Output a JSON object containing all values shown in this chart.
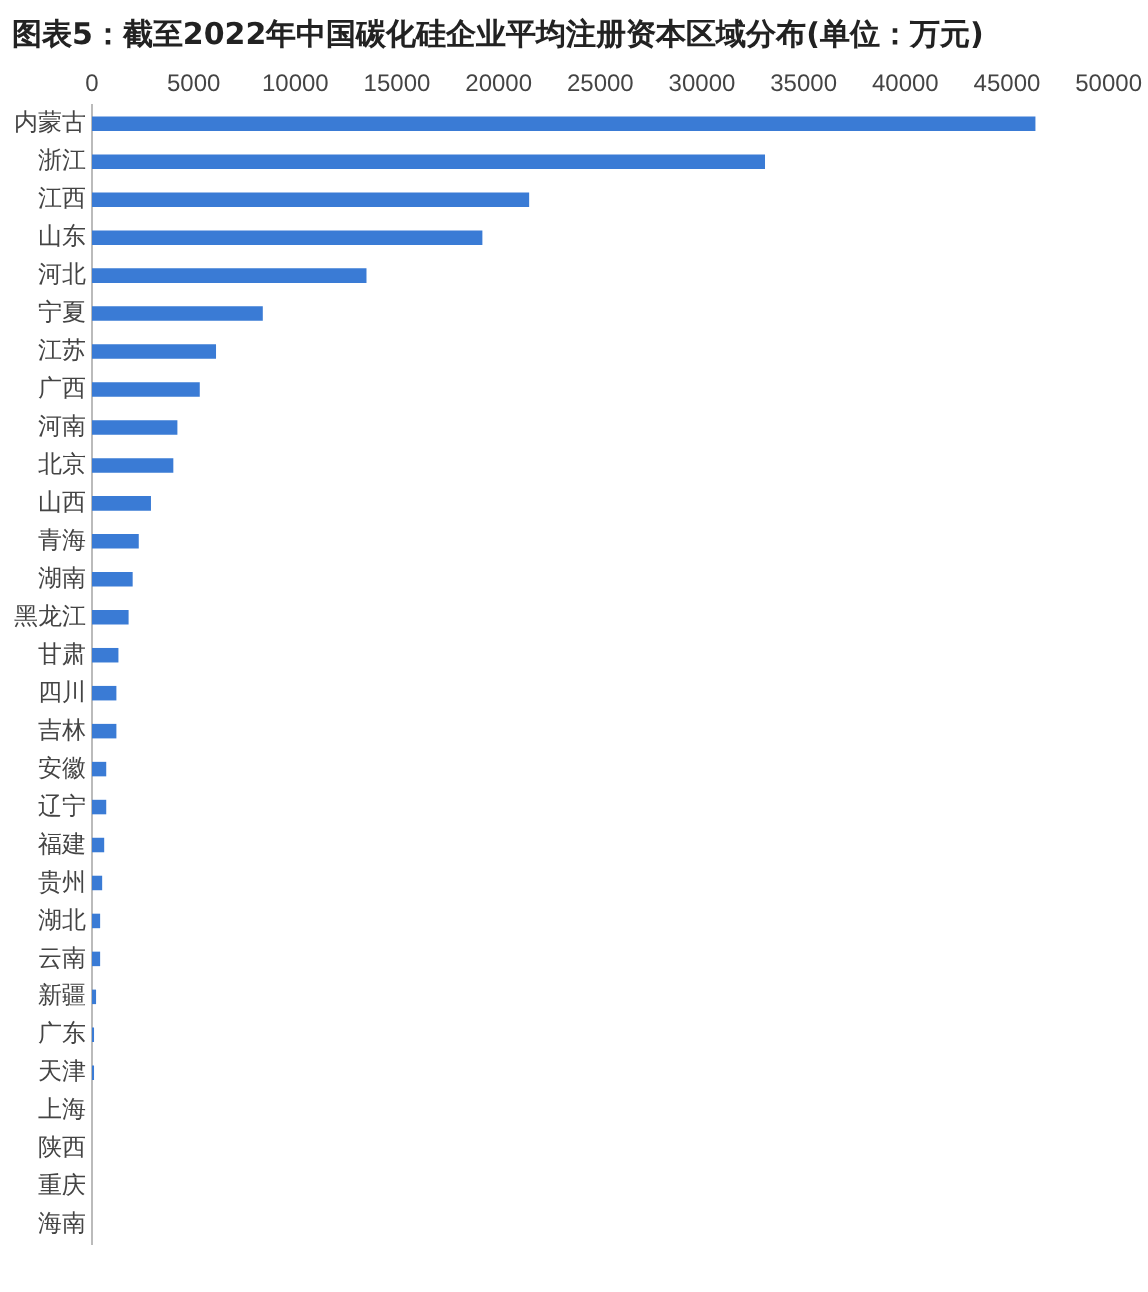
{
  "chart_data": {
    "type": "bar",
    "orientation": "horizontal",
    "title": "图表5：截至2022年中国碳化硅企业平均注册资本区域分布(单位：万元)",
    "categories": [
      "内蒙古",
      "浙江",
      "江西",
      "山东",
      "河北",
      "宁夏",
      "江苏",
      "广西",
      "河南",
      "北京",
      "山西",
      "青海",
      "湖南",
      "黑龙江",
      "甘肃",
      "四川",
      "吉林",
      "安徽",
      "辽宁",
      "福建",
      "贵州",
      "湖北",
      "云南",
      "新疆",
      "广东",
      "天津",
      "上海",
      "陕西",
      "重庆",
      "海南"
    ],
    "values": [
      46400,
      33100,
      21500,
      19200,
      13500,
      8400,
      6100,
      5300,
      4200,
      4000,
      2900,
      2300,
      2000,
      1800,
      1300,
      1200,
      1200,
      700,
      700,
      600,
      500,
      400,
      400,
      200,
      100,
      100,
      0,
      0,
      0,
      0
    ],
    "color": "#3a7bd5",
    "xlim": [
      0,
      50000
    ],
    "xticks": [
      0,
      5000,
      10000,
      15000,
      20000,
      25000,
      30000,
      35000,
      40000,
      45000,
      50000
    ],
    "grid": false,
    "legend": false
  }
}
